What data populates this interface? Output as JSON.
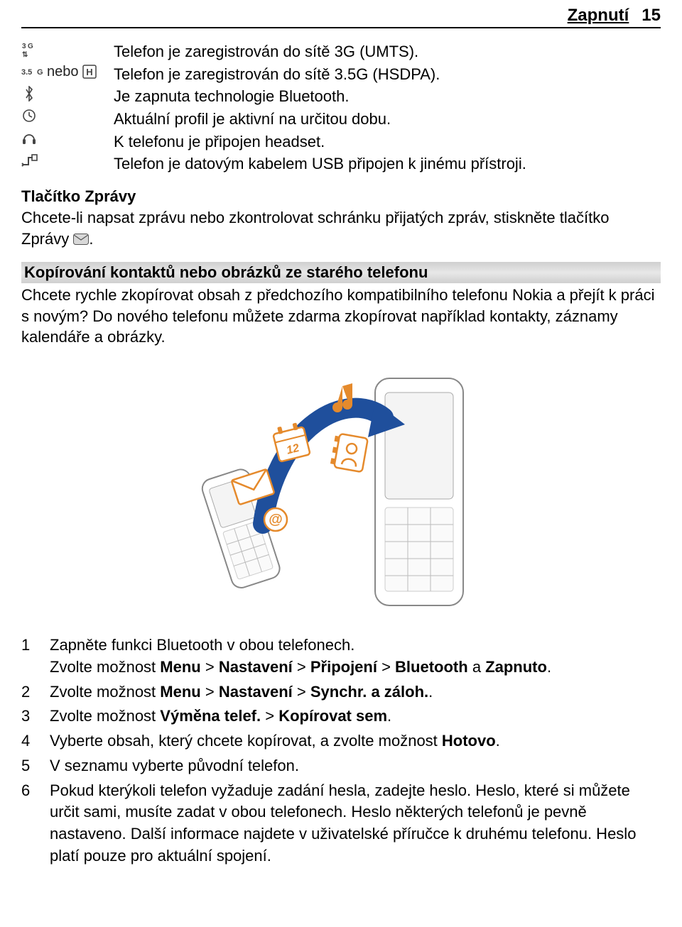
{
  "header": {
    "chapter": "Zapnutí",
    "page": "15"
  },
  "iconRows": [
    {
      "icon": "3g",
      "text": "Telefon je zaregistrován do sítě 3G (UMTS)."
    },
    {
      "icon": "35g",
      "text": "Telefon je zaregistrován do sítě 3.5G (HSDPA)."
    },
    {
      "icon": "bt",
      "text": "Je zapnuta technologie Bluetooth."
    },
    {
      "icon": "clk",
      "text": "Aktuální profil je aktivní na určitou dobu."
    },
    {
      "icon": "hs",
      "text": "K telefonu je připojen headset."
    },
    {
      "icon": "usb",
      "text": "Telefon je datovým kabelem USB připojen k jinému přístroji."
    }
  ],
  "nebo": "nebo",
  "zpravy": {
    "title": "Tlačítko Zprávy",
    "body_a": "Chcete-li napsat zprávu nebo zkontrolovat schránku přijatých zpráv, stiskněte tlačítko Zprávy ",
    "body_b": "."
  },
  "copy": {
    "heading": "Kopírování kontaktů nebo obrázků ze starého telefonu",
    "body": "Chcete rychle zkopírovat obsah z předchozího kompatibilního telefonu Nokia a přejít k práci s novým? Do nového telefonu můžete zdarma zkopírovat například kontakty, záznamy kalendáře a obrázky."
  },
  "steps": [
    {
      "num": "1",
      "lines": [
        [
          {
            "t": "Zapněte funkci Bluetooth v obou telefonech."
          }
        ],
        [
          {
            "t": "Zvolte možnost "
          },
          {
            "t": "Menu",
            "b": true
          },
          {
            "t": " > "
          },
          {
            "t": "Nastavení",
            "b": true
          },
          {
            "t": " > "
          },
          {
            "t": "Připojení",
            "b": true
          },
          {
            "t": " > "
          },
          {
            "t": "Bluetooth",
            "b": true
          },
          {
            "t": " a "
          },
          {
            "t": "Zapnuto",
            "b": true
          },
          {
            "t": "."
          }
        ]
      ]
    },
    {
      "num": "2",
      "lines": [
        [
          {
            "t": "Zvolte možnost "
          },
          {
            "t": "Menu",
            "b": true
          },
          {
            "t": " > "
          },
          {
            "t": "Nastavení",
            "b": true
          },
          {
            "t": " > "
          },
          {
            "t": "Synchr. a záloh.",
            "b": true
          },
          {
            "t": "."
          }
        ]
      ]
    },
    {
      "num": "3",
      "lines": [
        [
          {
            "t": "Zvolte možnost "
          },
          {
            "t": "Výměna telef.",
            "b": true
          },
          {
            "t": " > "
          },
          {
            "t": "Kopírovat sem",
            "b": true
          },
          {
            "t": "."
          }
        ]
      ]
    },
    {
      "num": "4",
      "lines": [
        [
          {
            "t": "Vyberte obsah, který chcete kopírovat, a zvolte možnost "
          },
          {
            "t": "Hotovo",
            "b": true
          },
          {
            "t": "."
          }
        ]
      ]
    },
    {
      "num": "5",
      "lines": [
        [
          {
            "t": "V seznamu vyberte původní telefon."
          }
        ]
      ]
    },
    {
      "num": "6",
      "lines": [
        [
          {
            "t": "Pokud kterýkoli telefon vyžaduje zadání hesla, zadejte heslo. Heslo, které si můžete určit sami, musíte zadat v obou telefonech. Heslo některých telefonů je pevně nastaveno. Další informace najdete v uživatelské příručce k druhému telefonu. Heslo platí pouze pro aktuální spojení."
          }
        ]
      ]
    }
  ],
  "colors": {
    "accent": "#e58a2c",
    "arrow": "#1f4f9c",
    "outline": "#888888"
  }
}
